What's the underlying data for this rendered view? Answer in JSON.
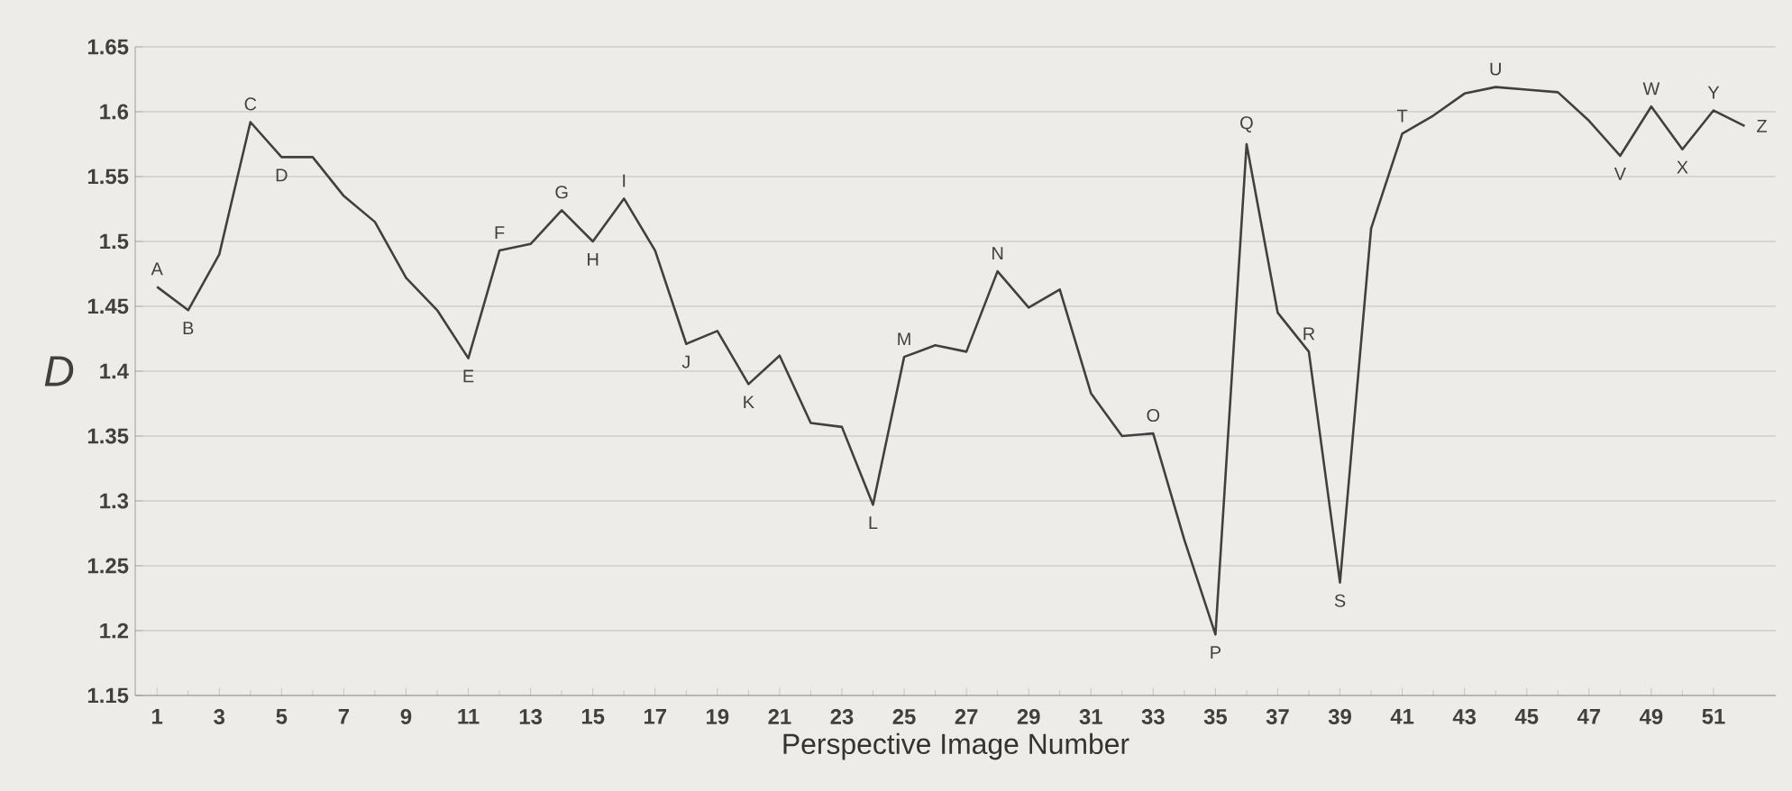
{
  "chart_data": {
    "type": "line",
    "xlabel": "Perspective Image Number",
    "ylabel": "D",
    "x": [
      1,
      2,
      3,
      4,
      5,
      6,
      7,
      8,
      9,
      10,
      11,
      12,
      13,
      14,
      15,
      16,
      17,
      18,
      19,
      20,
      21,
      22,
      23,
      24,
      25,
      26,
      27,
      28,
      29,
      30,
      31,
      32,
      33,
      34,
      35,
      36,
      37,
      38,
      39,
      40,
      41,
      42,
      43,
      44,
      45,
      46,
      47,
      48,
      49,
      50,
      51,
      52
    ],
    "values": [
      1.465,
      1.447,
      1.49,
      1.592,
      1.565,
      1.565,
      1.535,
      1.515,
      1.472,
      1.447,
      1.41,
      1.493,
      1.498,
      1.524,
      1.5,
      1.533,
      1.493,
      1.421,
      1.431,
      1.39,
      1.412,
      1.36,
      1.357,
      1.297,
      1.411,
      1.42,
      1.415,
      1.477,
      1.449,
      1.463,
      1.383,
      1.35,
      1.352,
      1.27,
      1.197,
      1.575,
      1.445,
      1.415,
      1.237,
      1.51,
      1.583,
      1.597,
      1.614,
      1.619,
      1.617,
      1.615,
      1.593,
      1.566,
      1.604,
      1.571,
      1.601,
      1.589
    ],
    "color": "#404040",
    "marker": "none",
    "line_style": "solid",
    "grid": "y",
    "xlim": [
      0.3,
      53
    ],
    "xticks": [
      1,
      3,
      5,
      7,
      9,
      11,
      13,
      15,
      17,
      19,
      21,
      23,
      25,
      27,
      29,
      31,
      33,
      35,
      37,
      39,
      41,
      43,
      45,
      47,
      49,
      51
    ],
    "ylim": [
      1.15,
      1.65
    ],
    "yticks": [
      1.15,
      1.2,
      1.25,
      1.3,
      1.35,
      1.4,
      1.45,
      1.5,
      1.55,
      1.6,
      1.65
    ],
    "annotations": [
      {
        "text": "A",
        "x": 1,
        "y": 1.465
      },
      {
        "text": "B",
        "x": 2,
        "y": 1.447
      },
      {
        "text": "C",
        "x": 4,
        "y": 1.592
      },
      {
        "text": "D",
        "x": 5,
        "y": 1.565
      },
      {
        "text": "E",
        "x": 11,
        "y": 1.41
      },
      {
        "text": "F",
        "x": 12,
        "y": 1.493
      },
      {
        "text": "G",
        "x": 14,
        "y": 1.524
      },
      {
        "text": "H",
        "x": 15,
        "y": 1.5
      },
      {
        "text": "I",
        "x": 16,
        "y": 1.533
      },
      {
        "text": "J",
        "x": 18,
        "y": 1.421
      },
      {
        "text": "K",
        "x": 20,
        "y": 1.39
      },
      {
        "text": "L",
        "x": 24,
        "y": 1.297
      },
      {
        "text": "M",
        "x": 25,
        "y": 1.411
      },
      {
        "text": "N",
        "x": 28,
        "y": 1.477
      },
      {
        "text": "O",
        "x": 33,
        "y": 1.352
      },
      {
        "text": "P",
        "x": 35,
        "y": 1.197
      },
      {
        "text": "Q",
        "x": 36,
        "y": 1.575
      },
      {
        "text": "R",
        "x": 38,
        "y": 1.415
      },
      {
        "text": "S",
        "x": 39,
        "y": 1.237
      },
      {
        "text": "T",
        "x": 41,
        "y": 1.583
      },
      {
        "text": "U",
        "x": 44,
        "y": 1.619
      },
      {
        "text": "V",
        "x": 48,
        "y": 1.566
      },
      {
        "text": "W",
        "x": 49,
        "y": 1.604
      },
      {
        "text": "X",
        "x": 50,
        "y": 1.571
      },
      {
        "text": "Y",
        "x": 51,
        "y": 1.601
      },
      {
        "text": "Z",
        "x": 52,
        "y": 1.589
      }
    ]
  }
}
